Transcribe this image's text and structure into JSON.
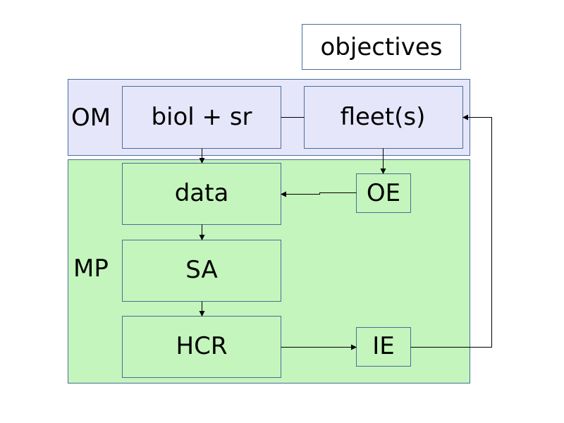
{
  "colors": {
    "om_region_fill": "#e6e6fa",
    "mp_region_fill": "#c4f5bc",
    "box_border": "#4a6d9a",
    "arrow": "#000000",
    "text": "#000000",
    "objectives_fill": "#ffffff"
  },
  "regions": {
    "om": {
      "label": "OM"
    },
    "mp": {
      "label": "MP"
    }
  },
  "nodes": {
    "objectives": {
      "label": "objectives"
    },
    "biol_sr": {
      "label": "biol + sr"
    },
    "fleets": {
      "label": "fleet(s)"
    },
    "data": {
      "label": "data"
    },
    "oe": {
      "label": "OE"
    },
    "sa": {
      "label": "SA"
    },
    "hcr": {
      "label": "HCR"
    },
    "ie": {
      "label": "IE"
    }
  }
}
